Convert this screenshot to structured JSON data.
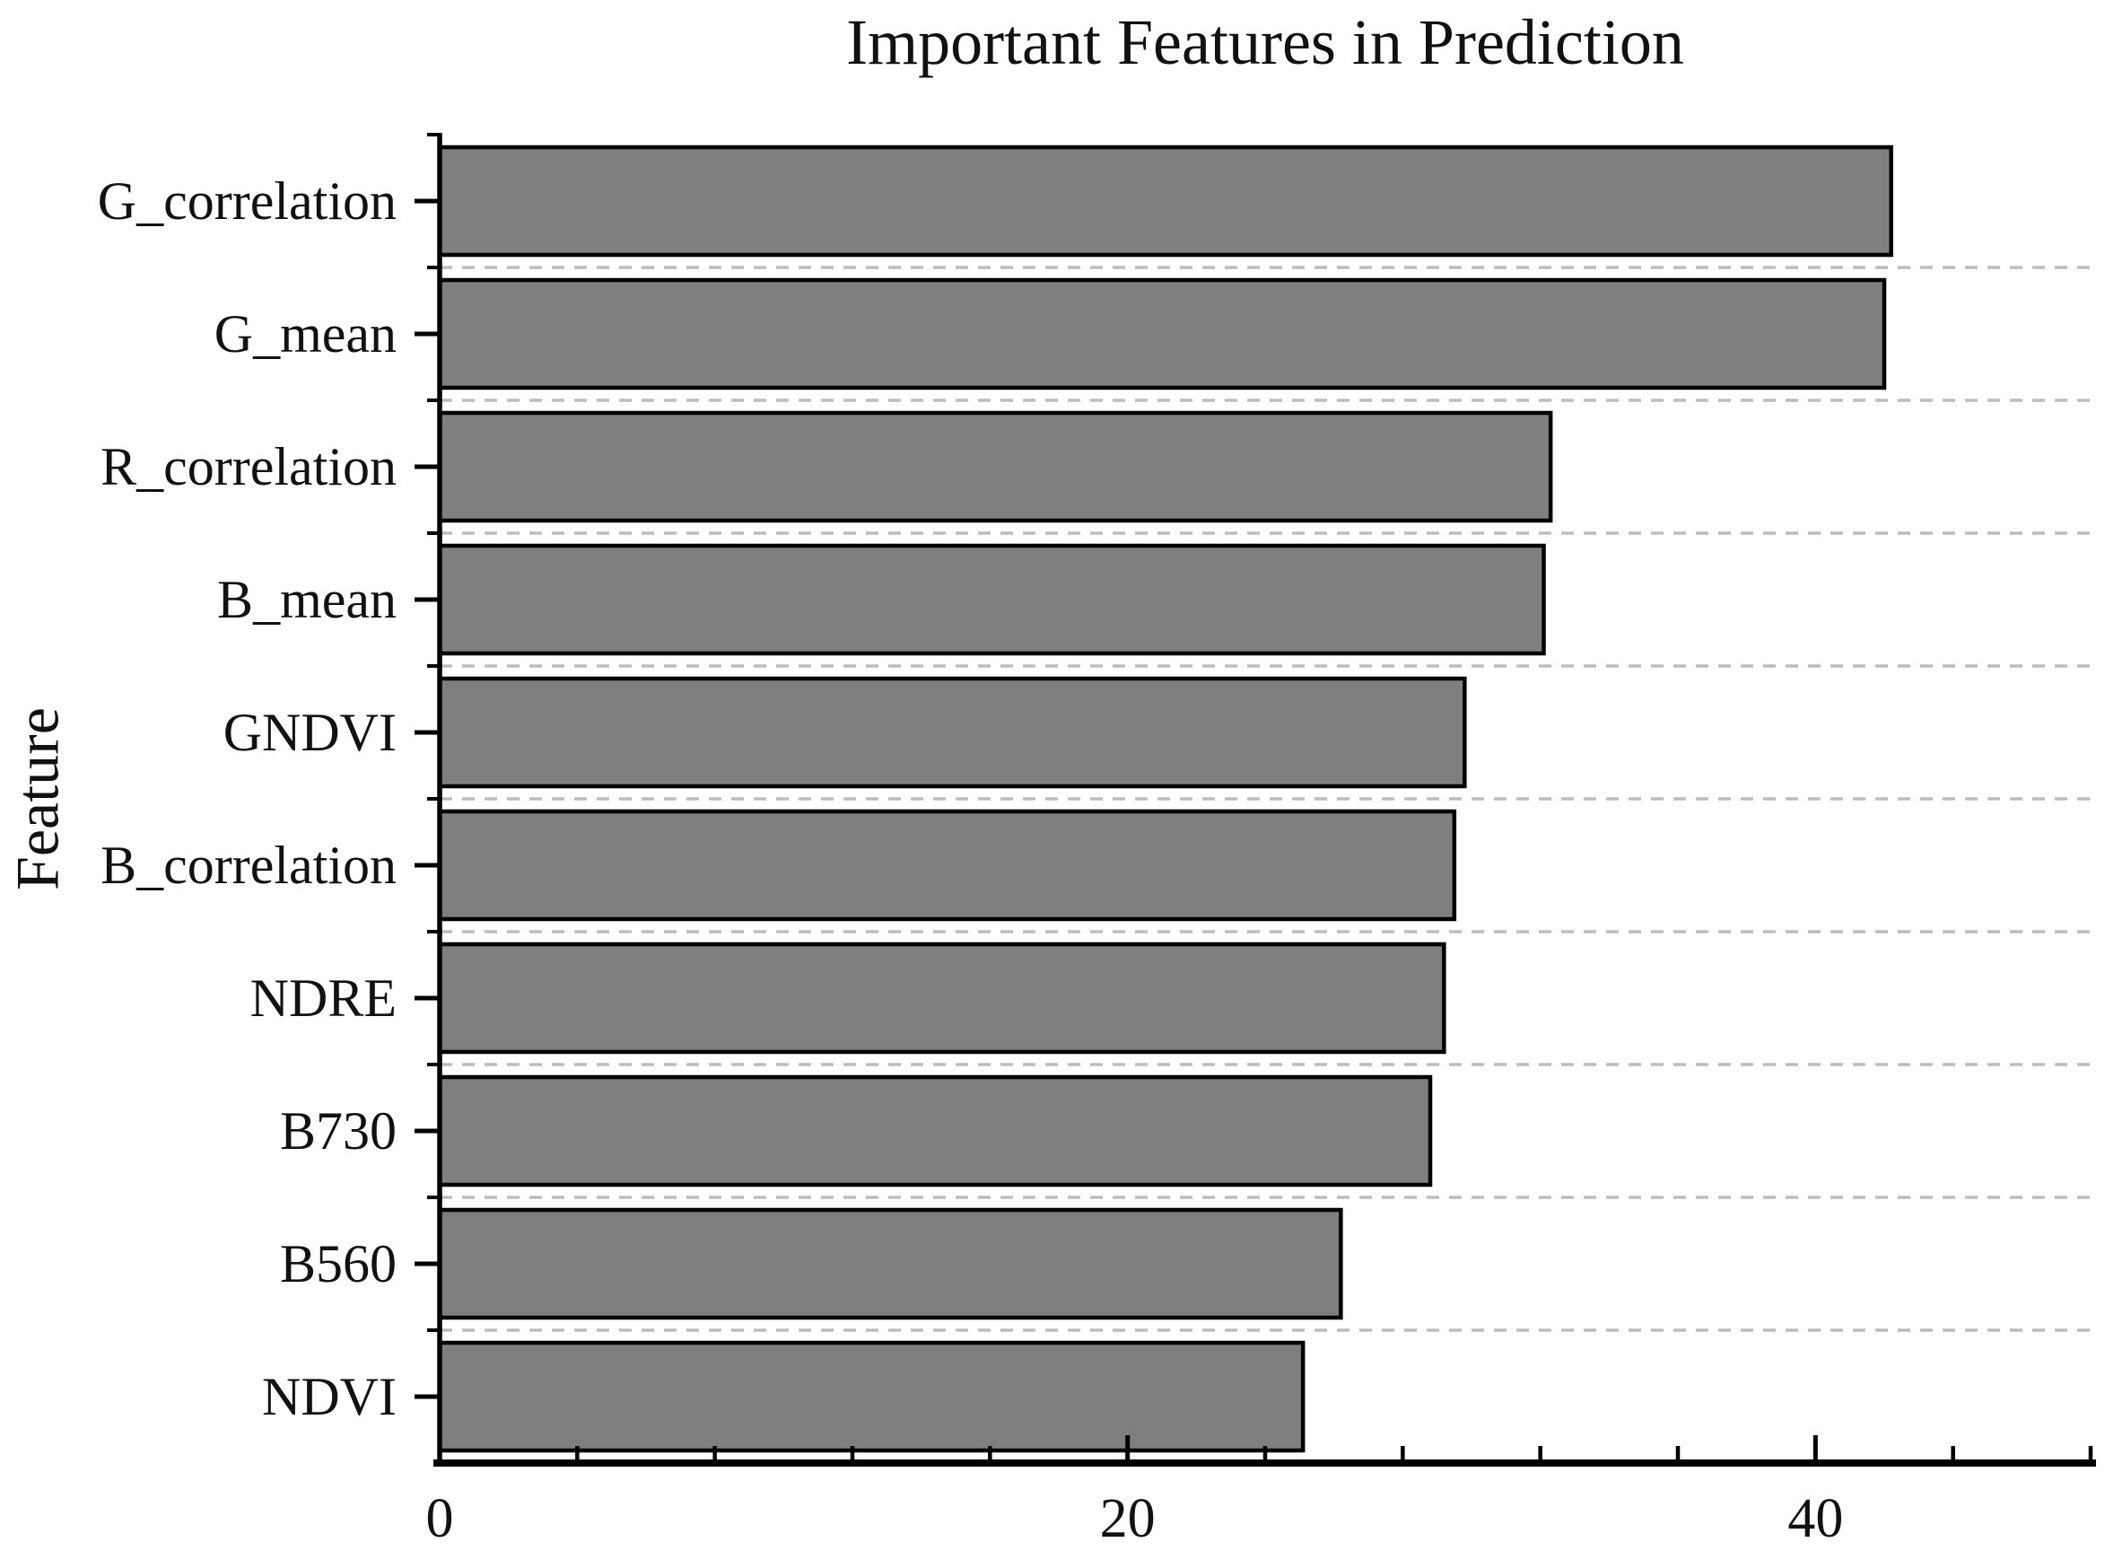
{
  "title": "Important Features in Prediction",
  "chart_data": {
    "type": "bar",
    "orientation": "horizontal",
    "title": "Important Features in Prediction",
    "xlabel": "",
    "ylabel": "Feature",
    "categories": [
      "G_correlation",
      "G_mean",
      "R_correlation",
      "B_mean",
      "GNDVI",
      "B_correlation",
      "NDRE",
      "B730",
      "B560",
      "NDVI"
    ],
    "values": [
      42.2,
      42.0,
      32.3,
      32.1,
      29.8,
      29.5,
      29.2,
      28.8,
      26.2,
      25.1
    ],
    "xlim": [
      0,
      48
    ],
    "x_major_ticks": [
      0,
      20,
      40
    ],
    "x_tick_labels": [
      "0",
      "20",
      "40"
    ],
    "x_minor_tick_step": 4,
    "grid": "horizontal dashed gridlines at category boundaries",
    "legend_position": "none",
    "bar_fill_color": "#7f7f7f",
    "bar_edge_color": "#000000",
    "grid_color": "#bdbdbd",
    "axis_color": "#000000"
  }
}
